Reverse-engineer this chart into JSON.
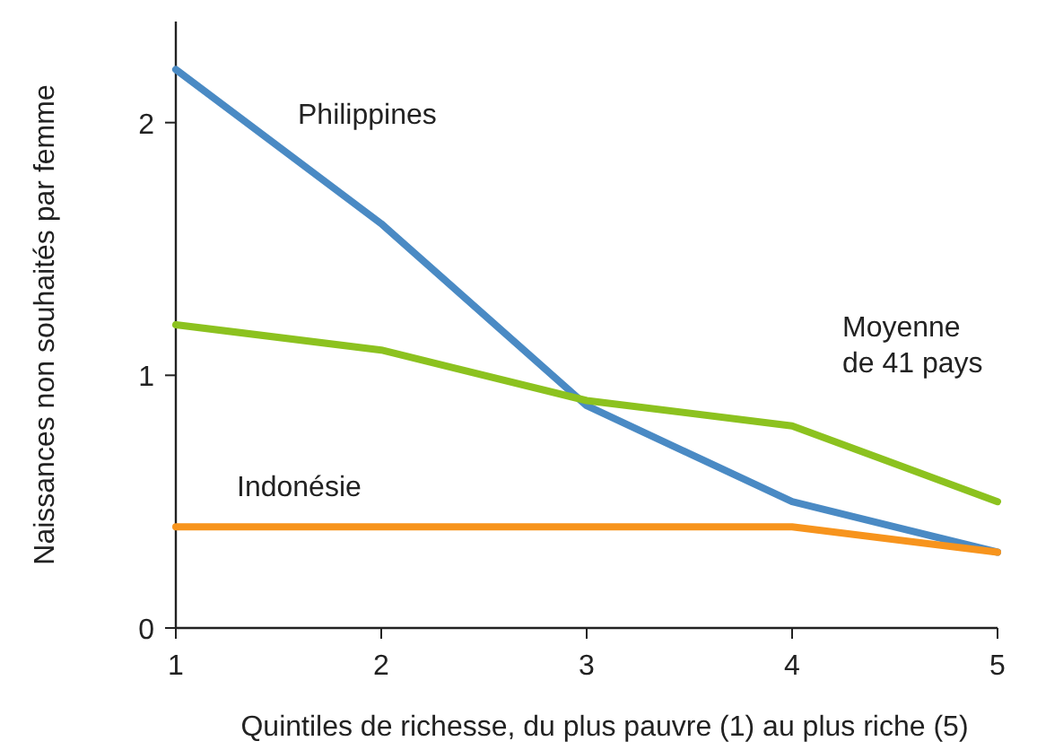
{
  "chart_data": {
    "type": "line",
    "xlabel": "Quintiles de richesse, du plus pauvre (1) au plus riche (5)",
    "ylabel": "Naissances non souhaités par femme",
    "x": [
      1,
      2,
      3,
      4,
      5
    ],
    "xlim": [
      1,
      5
    ],
    "xticks": [
      1,
      2,
      3,
      4,
      5
    ],
    "ylim": [
      0,
      2.4
    ],
    "yticks": [
      0,
      1,
      2
    ],
    "grid": false,
    "marker": "none",
    "line_style": "solid",
    "series": [
      {
        "name": "Philippines",
        "color": "#4a8ac4",
        "values": [
          2.21,
          1.6,
          0.88,
          0.5,
          0.3
        ]
      },
      {
        "name": "Moyenne\nde 41 pays",
        "color": "#8cc21f",
        "values": [
          1.2,
          1.1,
          0.9,
          0.8,
          0.5
        ]
      },
      {
        "name": "Indonésie",
        "color": "#f7941d",
        "values": [
          0.4,
          0.4,
          0.4,
          0.4,
          0.3
        ]
      }
    ]
  }
}
